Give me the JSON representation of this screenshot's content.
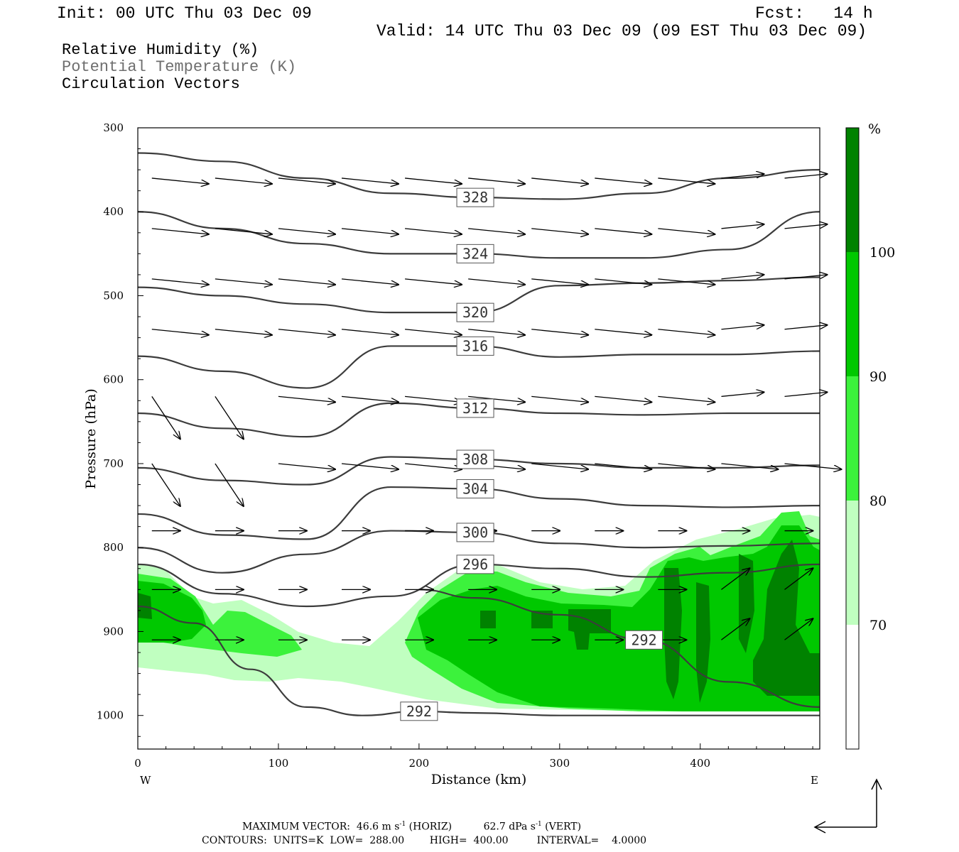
{
  "header": {
    "init": "Init: 00 UTC Thu 03 Dec 09",
    "fcst": "Fcst:   14 h",
    "valid": "Valid: 14 UTC Thu 03 Dec 09 (09 EST Thu 03 Dec 09)"
  },
  "legend": {
    "line1": "Relative Humidity (%)",
    "line2": "Potential Temperature (K)",
    "line3": "Circulation Vectors"
  },
  "footer": {
    "max_vector_prefix": "MAXIMUM VECTOR:  46.6 m s",
    "max_vector_horiz": " (HORIZ)",
    "max_vector_vert_prefix": "62.7 dPa s",
    "max_vector_vert": " (VERT)",
    "exponent": "-1",
    "contours": "CONTOURS:  UNITS=K  LOW=  288.00        HIGH=  400.00         INTERVAL=    4.0000"
  },
  "colors": {
    "rh70": "#c0ffc0",
    "rh80": "#3cf23c",
    "rh90": "#00c800",
    "rh100": "#008200",
    "theta_line": "#3c3c3c"
  },
  "chart_data": {
    "type": "cross-section",
    "xlabel": "Distance (km)",
    "ylabel": "Pressure (hPa)",
    "x_ticks": [
      "0",
      "100",
      "200",
      "300",
      "400"
    ],
    "x_tick_values": [
      0,
      100,
      200,
      300,
      400
    ],
    "y_ticks": [
      "300",
      "400",
      "500",
      "600",
      "700",
      "800",
      "900",
      "1000"
    ],
    "y_tick_values": [
      300,
      400,
      500,
      600,
      700,
      800,
      900,
      1000
    ],
    "xlim": [
      0,
      485
    ],
    "ylim": [
      300,
      1040
    ],
    "y_log_scale": false,
    "west_label": "W",
    "east_label": "E",
    "colorbar": {
      "unit": "%",
      "levels": [
        70,
        80,
        90,
        100
      ],
      "labels": [
        "70",
        "80",
        "90",
        "100"
      ],
      "colors": [
        "#c0ffc0",
        "#3cf23c",
        "#00c800",
        "#008200"
      ]
    },
    "theta_contours": [
      {
        "level": 328,
        "label": "328",
        "points": [
          [
            0,
            330
          ],
          [
            60,
            340
          ],
          [
            120,
            360
          ],
          [
            180,
            378
          ],
          [
            240,
            383
          ],
          [
            300,
            385
          ],
          [
            360,
            378
          ],
          [
            420,
            360
          ],
          [
            485,
            350
          ]
        ]
      },
      {
        "level": 324,
        "label": "324",
        "points": [
          [
            0,
            400
          ],
          [
            60,
            420
          ],
          [
            120,
            438
          ],
          [
            180,
            450
          ],
          [
            240,
            450
          ],
          [
            300,
            455
          ],
          [
            360,
            455
          ],
          [
            420,
            445
          ],
          [
            485,
            400
          ]
        ]
      },
      {
        "level": 320,
        "label": "320",
        "points": [
          [
            0,
            490
          ],
          [
            60,
            500
          ],
          [
            120,
            510
          ],
          [
            180,
            520
          ],
          [
            240,
            520
          ],
          [
            300,
            488
          ],
          [
            360,
            485
          ],
          [
            420,
            482
          ],
          [
            485,
            478
          ]
        ]
      },
      {
        "level": 316,
        "label": "316",
        "points": [
          [
            0,
            572
          ],
          [
            60,
            590
          ],
          [
            120,
            610
          ],
          [
            180,
            560
          ],
          [
            240,
            560
          ],
          [
            300,
            573
          ],
          [
            360,
            570
          ],
          [
            420,
            570
          ],
          [
            485,
            566
          ]
        ]
      },
      {
        "level": 312,
        "label": "312",
        "points": [
          [
            0,
            640
          ],
          [
            60,
            658
          ],
          [
            120,
            668
          ],
          [
            180,
            628
          ],
          [
            240,
            634
          ],
          [
            300,
            640
          ],
          [
            360,
            642
          ],
          [
            420,
            640
          ],
          [
            485,
            640
          ]
        ]
      },
      {
        "level": 308,
        "label": "308",
        "points": [
          [
            0,
            705
          ],
          [
            60,
            720
          ],
          [
            120,
            725
          ],
          [
            180,
            692
          ],
          [
            240,
            695
          ],
          [
            300,
            700
          ],
          [
            360,
            705
          ],
          [
            420,
            705
          ],
          [
            485,
            702
          ]
        ]
      },
      {
        "level": 304,
        "label": "304",
        "points": [
          [
            0,
            760
          ],
          [
            60,
            785
          ],
          [
            120,
            790
          ],
          [
            180,
            728
          ],
          [
            240,
            730
          ],
          [
            300,
            742
          ],
          [
            360,
            750
          ],
          [
            420,
            752
          ],
          [
            485,
            750
          ]
        ]
      },
      {
        "level": 300,
        "label": "300",
        "points": [
          [
            0,
            800
          ],
          [
            60,
            830
          ],
          [
            120,
            808
          ],
          [
            180,
            780
          ],
          [
            240,
            782
          ],
          [
            300,
            795
          ],
          [
            360,
            800
          ],
          [
            420,
            798
          ],
          [
            485,
            795
          ]
        ]
      },
      {
        "level": 296,
        "label": "296",
        "points": [
          [
            0,
            820
          ],
          [
            60,
            855
          ],
          [
            120,
            870
          ],
          [
            180,
            858
          ],
          [
            240,
            820
          ],
          [
            300,
            825
          ],
          [
            360,
            835
          ],
          [
            420,
            830
          ],
          [
            485,
            820
          ]
        ]
      },
      {
        "level": 292,
        "label": "292",
        "points": [
          [
            0,
            870
          ],
          [
            40,
            890
          ],
          [
            80,
            945
          ],
          [
            120,
            990
          ],
          [
            160,
            1000
          ],
          [
            200,
            995
          ],
          [
            240,
            997
          ],
          [
            300,
            1000
          ],
          [
            360,
            1000
          ],
          [
            420,
            1000
          ],
          [
            485,
            1000
          ]
        ]
      },
      {
        "level": 292,
        "label": "292",
        "points": [
          [
            200,
            850
          ],
          [
            240,
            860
          ],
          [
            300,
            880
          ],
          [
            360,
            910
          ],
          [
            420,
            960
          ],
          [
            485,
            990
          ]
        ]
      }
    ],
    "contour_label_positions_note": "",
    "vectors_note": ""
  }
}
